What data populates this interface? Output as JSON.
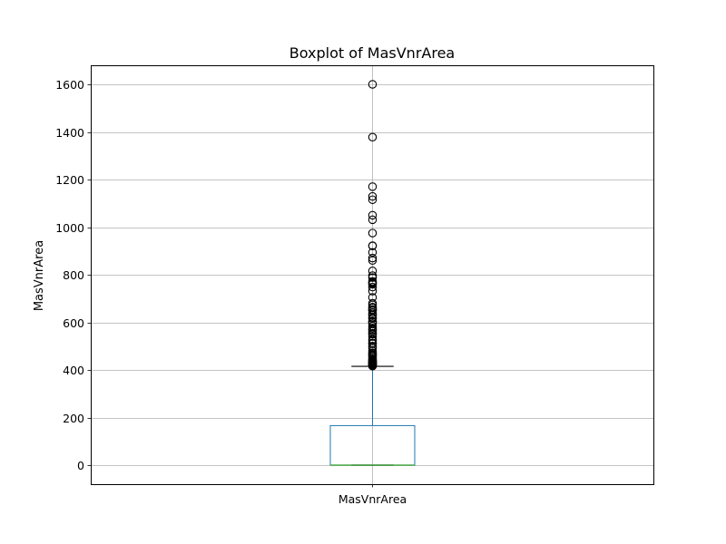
{
  "chart_data": {
    "type": "boxplot",
    "title": "Boxplot of MasVnrArea",
    "xlabel": "",
    "ylabel": "MasVnrArea",
    "categories": [
      "MasVnrArea"
    ],
    "ylim": [
      -80,
      1680
    ],
    "yticks": [
      0,
      200,
      400,
      600,
      800,
      1000,
      1200,
      1400,
      1600
    ],
    "grid": true,
    "colors": {
      "box": "#1f77b4",
      "median": "#2ca02c",
      "whisker_cap": "#000000",
      "flier": "#000000",
      "grid": "#b0b0b0"
    },
    "boxes": [
      {
        "label": "MasVnrArea",
        "q1": 0,
        "median": 0,
        "q3": 166,
        "whisker_low": 0,
        "whisker_high": 415,
        "fliers": [
          1600,
          1378,
          1170,
          1129,
          1115,
          1050,
          1031,
          975,
          922,
          921,
          894,
          870,
          860,
          816,
          796,
          788,
          772,
          768,
          766,
          762,
          760,
          748,
          731,
          705,
          680,
          673,
          664,
          660,
          653,
          651,
          650,
          640,
          632,
          630,
          620,
          616,
          604,
          603,
          600,
          594,
          584,
          576,
          570,
          568,
          562,
          554,
          550,
          541,
          528,
          522,
          513,
          510,
          500,
          492,
          480,
          472,
          468,
          464,
          460,
          456,
          450,
          445,
          442,
          438,
          436,
          434,
          432,
          430,
          428,
          426,
          424,
          423,
          422,
          421,
          420,
          418,
          417,
          416
        ]
      }
    ]
  }
}
